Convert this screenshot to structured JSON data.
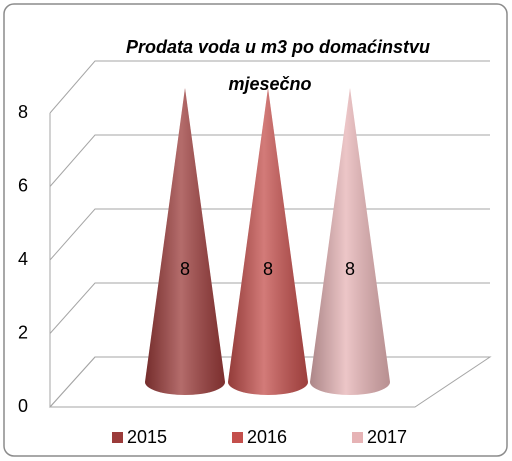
{
  "chart_data": {
    "type": "cone",
    "title": [
      "Prodata voda u m3 po domaćinstvu",
      "mjesečno"
    ],
    "categories": [
      null
    ],
    "series": [
      {
        "name": "2015",
        "color": "#9b3b3a",
        "values": [
          8
        ]
      },
      {
        "name": "2016",
        "color": "#c44f4c",
        "values": [
          8
        ]
      },
      {
        "name": "2017",
        "color": "#e6b3b5",
        "values": [
          8
        ]
      }
    ],
    "ylim": [
      0,
      8
    ],
    "yticks": [
      0,
      2,
      4,
      6,
      8
    ],
    "grid": true,
    "legend": "bottom"
  }
}
